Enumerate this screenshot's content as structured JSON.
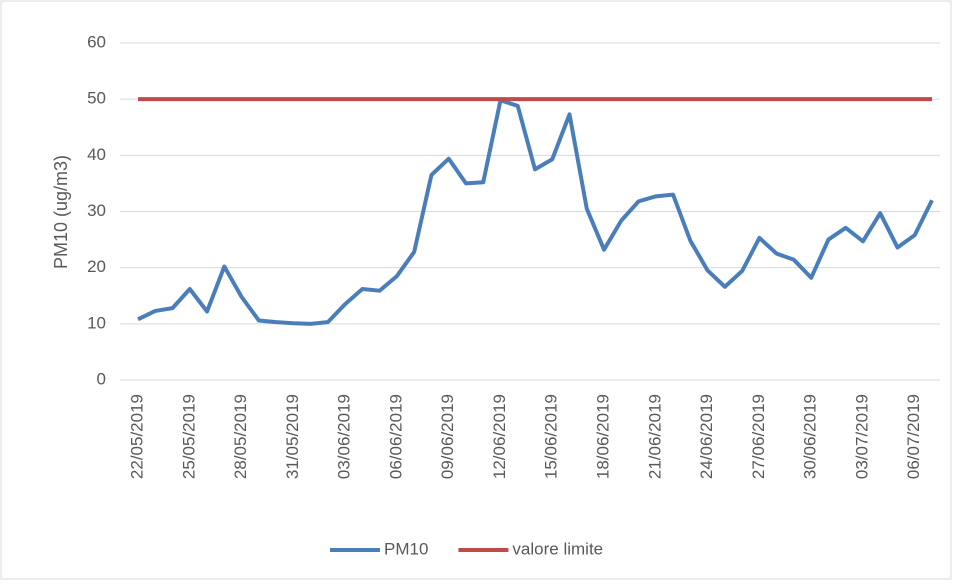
{
  "chart_data": {
    "type": "line",
    "ylabel": "PM10 (ug/m3)",
    "categories": [
      "22/05/2019",
      null,
      null,
      "25/05/2019",
      null,
      null,
      "28/05/2019",
      null,
      null,
      "31/05/2019",
      null,
      null,
      "03/06/2019",
      null,
      null,
      "06/06/2019",
      null,
      null,
      "09/06/2019",
      null,
      null,
      "12/06/2019",
      null,
      null,
      "15/06/2019",
      null,
      null,
      "18/06/2019",
      null,
      null,
      "21/06/2019",
      null,
      null,
      "24/06/2019",
      null,
      null,
      "27/06/2019",
      null,
      null,
      "30/06/2019",
      null,
      null,
      "03/07/2019",
      null,
      null,
      "06/07/2019",
      null
    ],
    "series": [
      {
        "name": "PM10",
        "color": "#4a7ebb",
        "values": [
          10.8,
          12.3,
          12.8,
          16.2,
          12.2,
          20.2,
          14.8,
          10.6,
          10.3,
          10.1,
          10.0,
          10.3,
          13.5,
          16.2,
          15.9,
          18.5,
          22.8,
          36.5,
          39.4,
          35.0,
          35.2,
          49.8,
          48.8,
          37.5,
          39.3,
          47.3,
          30.5,
          23.2,
          28.4,
          31.8,
          32.7,
          33.0,
          24.8,
          19.5,
          16.6,
          19.4,
          25.3,
          22.5,
          21.4,
          18.2,
          25.0,
          27.1,
          24.7,
          29.7,
          23.6,
          25.8,
          32.0
        ]
      },
      {
        "name": "valore limite",
        "color": "#be4b48",
        "values": [
          50,
          50,
          50,
          50,
          50,
          50,
          50,
          50,
          50,
          50,
          50,
          50,
          50,
          50,
          50,
          50,
          50,
          50,
          50,
          50,
          50,
          50,
          50,
          50,
          50,
          50,
          50,
          50,
          50,
          50,
          50,
          50,
          50,
          50,
          50,
          50,
          50,
          50,
          50,
          50,
          50,
          50,
          50,
          50,
          50,
          50,
          50
        ]
      }
    ],
    "ylim": [
      0,
      60
    ],
    "yticks": [
      0,
      10,
      20,
      30,
      40,
      50,
      60
    ],
    "grid": true,
    "legend": "bottom"
  }
}
